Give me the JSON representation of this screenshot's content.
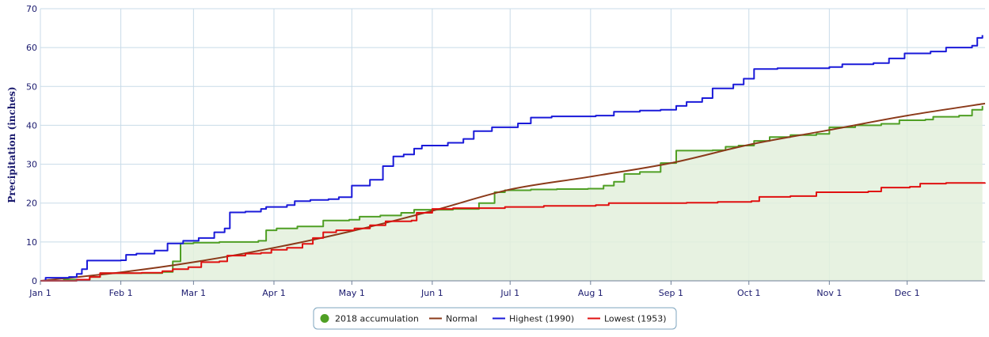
{
  "chart_data": {
    "type": "line",
    "title": "",
    "xlabel": "",
    "ylabel": "Precipitation (inches)",
    "ylim": [
      0,
      70
    ],
    "xlim_day_of_year": [
      1,
      365
    ],
    "y_ticks": [
      0,
      10,
      20,
      30,
      40,
      50,
      60,
      70
    ],
    "x_ticks": [
      {
        "label": "Jan 1",
        "doy": 1
      },
      {
        "label": "Feb 1",
        "doy": 32
      },
      {
        "label": "Mar 1",
        "doy": 60
      },
      {
        "label": "Apr 1",
        "doy": 91
      },
      {
        "label": "May 1",
        "doy": 121
      },
      {
        "label": "Jun 1",
        "doy": 152
      },
      {
        "label": "Jul 1",
        "doy": 182
      },
      {
        "label": "Aug 1",
        "doy": 213
      },
      {
        "label": "Sep 1",
        "doy": 244
      },
      {
        "label": "Oct 1",
        "doy": 274
      },
      {
        "label": "Nov 1",
        "doy": 305
      },
      {
        "label": "Dec 1",
        "doy": 335
      }
    ],
    "grid": true,
    "legend_position": "bottom-center",
    "series": [
      {
        "name": "2018 accumulation",
        "color": "#4f9f24",
        "fill": "#e3f0dc",
        "step": true,
        "points": [
          [
            1,
            0
          ],
          [
            10,
            0.3
          ],
          [
            20,
            1.0
          ],
          [
            24,
            2.0
          ],
          [
            42,
            2.0
          ],
          [
            48,
            2.3
          ],
          [
            52,
            5.0
          ],
          [
            55,
            9.6
          ],
          [
            60,
            9.8
          ],
          [
            70,
            10.0
          ],
          [
            85,
            10.3
          ],
          [
            88,
            13.0
          ],
          [
            92,
            13.5
          ],
          [
            100,
            14.0
          ],
          [
            110,
            15.5
          ],
          [
            120,
            15.7
          ],
          [
            124,
            16.5
          ],
          [
            132,
            16.8
          ],
          [
            140,
            17.5
          ],
          [
            145,
            18.3
          ],
          [
            152,
            18.3
          ],
          [
            160,
            18.5
          ],
          [
            168,
            18.5
          ],
          [
            170,
            20.0
          ],
          [
            176,
            22.8
          ],
          [
            180,
            23.3
          ],
          [
            190,
            23.5
          ],
          [
            200,
            23.6
          ],
          [
            212,
            23.7
          ],
          [
            218,
            24.5
          ],
          [
            222,
            25.5
          ],
          [
            226,
            27.5
          ],
          [
            232,
            28.0
          ],
          [
            240,
            30.3
          ],
          [
            246,
            33.5
          ],
          [
            260,
            33.6
          ],
          [
            265,
            34.5
          ],
          [
            270,
            34.8
          ],
          [
            276,
            36.0
          ],
          [
            282,
            37.0
          ],
          [
            290,
            37.5
          ],
          [
            300,
            37.8
          ],
          [
            305,
            39.5
          ],
          [
            315,
            40.0
          ],
          [
            325,
            40.4
          ],
          [
            332,
            41.3
          ],
          [
            342,
            41.5
          ],
          [
            345,
            42.2
          ],
          [
            355,
            42.5
          ],
          [
            360,
            44.0
          ],
          [
            364,
            45.0
          ]
        ]
      },
      {
        "name": "Normal",
        "color": "#8b3a1a",
        "step": false,
        "points": [
          [
            1,
            0
          ],
          [
            32,
            2.2
          ],
          [
            60,
            4.8
          ],
          [
            91,
            8.5
          ],
          [
            121,
            12.8
          ],
          [
            152,
            18.0
          ],
          [
            182,
            23.5
          ],
          [
            213,
            26.8
          ],
          [
            244,
            30.3
          ],
          [
            274,
            35.0
          ],
          [
            305,
            38.8
          ],
          [
            335,
            42.5
          ],
          [
            365,
            45.6
          ]
        ]
      },
      {
        "name": "Highest (1990)",
        "color": "#1a1ad9",
        "step": true,
        "points": [
          [
            1,
            0
          ],
          [
            3,
            0.8
          ],
          [
            12,
            1.0
          ],
          [
            15,
            1.8
          ],
          [
            17,
            3.0
          ],
          [
            19,
            5.2
          ],
          [
            32,
            5.3
          ],
          [
            34,
            6.7
          ],
          [
            38,
            7.0
          ],
          [
            45,
            7.8
          ],
          [
            50,
            9.6
          ],
          [
            56,
            10.3
          ],
          [
            62,
            11.0
          ],
          [
            68,
            12.5
          ],
          [
            72,
            13.5
          ],
          [
            74,
            17.6
          ],
          [
            80,
            17.8
          ],
          [
            86,
            18.5
          ],
          [
            88,
            19.0
          ],
          [
            96,
            19.5
          ],
          [
            99,
            20.5
          ],
          [
            105,
            20.8
          ],
          [
            112,
            21.0
          ],
          [
            116,
            21.5
          ],
          [
            121,
            24.5
          ],
          [
            128,
            26.0
          ],
          [
            133,
            29.5
          ],
          [
            137,
            32.0
          ],
          [
            141,
            32.5
          ],
          [
            145,
            34.0
          ],
          [
            148,
            34.8
          ],
          [
            158,
            35.5
          ],
          [
            164,
            36.5
          ],
          [
            168,
            38.5
          ],
          [
            175,
            39.5
          ],
          [
            185,
            40.5
          ],
          [
            190,
            42.0
          ],
          [
            198,
            42.3
          ],
          [
            215,
            42.5
          ],
          [
            222,
            43.5
          ],
          [
            232,
            43.8
          ],
          [
            240,
            44.0
          ],
          [
            246,
            45.0
          ],
          [
            250,
            46.0
          ],
          [
            256,
            47.0
          ],
          [
            260,
            49.5
          ],
          [
            268,
            50.5
          ],
          [
            272,
            52.0
          ],
          [
            276,
            54.5
          ],
          [
            285,
            54.7
          ],
          [
            305,
            55.0
          ],
          [
            310,
            55.7
          ],
          [
            322,
            56.0
          ],
          [
            328,
            57.2
          ],
          [
            334,
            58.5
          ],
          [
            344,
            59.0
          ],
          [
            350,
            60.0
          ],
          [
            360,
            60.5
          ],
          [
            362,
            62.5
          ],
          [
            364,
            63.2
          ]
        ]
      },
      {
        "name": "Lowest (1953)",
        "color": "#e01010",
        "step": true,
        "points": [
          [
            1,
            0
          ],
          [
            15,
            0.3
          ],
          [
            20,
            1.0
          ],
          [
            24,
            2.0
          ],
          [
            40,
            2.1
          ],
          [
            48,
            2.5
          ],
          [
            52,
            3.0
          ],
          [
            58,
            3.5
          ],
          [
            63,
            4.8
          ],
          [
            70,
            5.0
          ],
          [
            73,
            6.5
          ],
          [
            80,
            7.0
          ],
          [
            86,
            7.2
          ],
          [
            90,
            8.0
          ],
          [
            96,
            8.5
          ],
          [
            102,
            9.5
          ],
          [
            106,
            11.0
          ],
          [
            110,
            12.5
          ],
          [
            115,
            13.0
          ],
          [
            122,
            13.5
          ],
          [
            128,
            14.3
          ],
          [
            134,
            15.3
          ],
          [
            144,
            15.5
          ],
          [
            146,
            17.5
          ],
          [
            152,
            18.5
          ],
          [
            160,
            18.7
          ],
          [
            180,
            19.0
          ],
          [
            195,
            19.3
          ],
          [
            215,
            19.5
          ],
          [
            220,
            20.0
          ],
          [
            250,
            20.1
          ],
          [
            262,
            20.3
          ],
          [
            275,
            20.5
          ],
          [
            278,
            21.6
          ],
          [
            290,
            21.8
          ],
          [
            300,
            22.8
          ],
          [
            320,
            23.0
          ],
          [
            325,
            24.0
          ],
          [
            336,
            24.2
          ],
          [
            340,
            25.0
          ],
          [
            350,
            25.2
          ],
          [
            365,
            25.3
          ]
        ]
      }
    ]
  }
}
